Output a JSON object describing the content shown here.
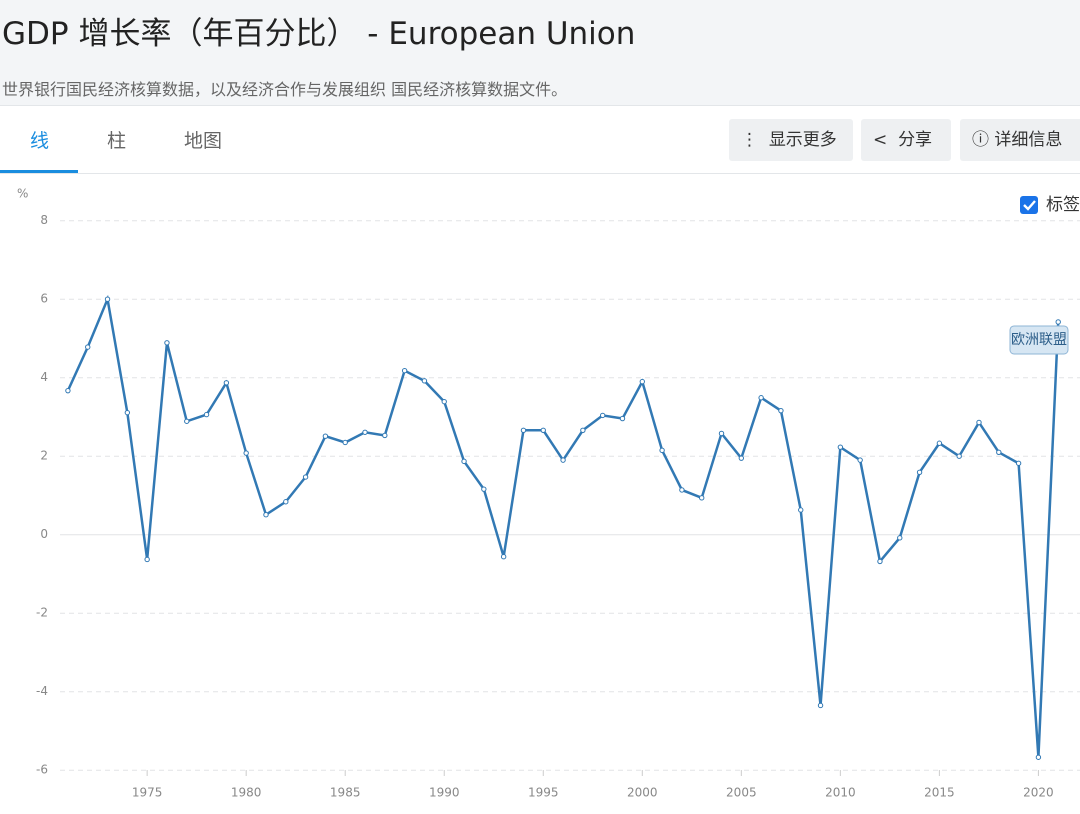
{
  "header": {
    "title": "GDP 增长率（年百分比） - European Union",
    "subtitle": "世界银行国民经济核算数据，以及经济合作与发展组织 国民经济核算数据文件。"
  },
  "tabs": [
    "线",
    "柱",
    "地图"
  ],
  "buttons": [
    "显示更多",
    "分享",
    "详细信息"
  ],
  "controls": {
    "labels_checkbox": "标签"
  },
  "chart_data": {
    "type": "line",
    "y_label": "%",
    "x": [
      1971,
      1972,
      1973,
      1974,
      1975,
      1976,
      1977,
      1978,
      1979,
      1980,
      1981,
      1982,
      1983,
      1984,
      1985,
      1986,
      1987,
      1988,
      1989,
      1990,
      1991,
      1992,
      1993,
      1994,
      1995,
      1996,
      1997,
      1998,
      1999,
      2000,
      2001,
      2002,
      2003,
      2004,
      2005,
      2006,
      2007,
      2008,
      2009,
      2010,
      2011,
      2012,
      2013,
      2014,
      2015,
      2016,
      2017,
      2018,
      2019,
      2020,
      2021
    ],
    "series": [
      {
        "name": "欧洲联盟",
        "color": "#3279b4",
        "values": [
          3.67,
          4.78,
          6.0,
          3.11,
          -0.63,
          4.89,
          2.89,
          3.06,
          3.87,
          2.08,
          0.51,
          0.84,
          1.47,
          2.51,
          2.35,
          2.61,
          2.53,
          4.18,
          3.92,
          3.39,
          1.87,
          1.16,
          -0.56,
          2.66,
          2.66,
          1.9,
          2.66,
          3.04,
          2.96,
          3.9,
          2.15,
          1.14,
          0.94,
          2.58,
          1.95,
          3.49,
          3.16,
          0.63,
          -4.35,
          2.23,
          1.9,
          -0.68,
          -0.08,
          1.59,
          2.33,
          2.0,
          2.86,
          2.1,
          1.82,
          -5.67,
          5.42
        ]
      }
    ],
    "xlim": [
      1970.6,
      2022.1
    ],
    "xticks": [
      1975,
      1980,
      1985,
      1990,
      1995,
      2000,
      2005,
      2010,
      2015,
      2020
    ],
    "ylim": [
      -6.3,
      8.4
    ],
    "yticks": [
      -6,
      -4,
      -2,
      0,
      2,
      4,
      6,
      8
    ],
    "grid": true
  }
}
